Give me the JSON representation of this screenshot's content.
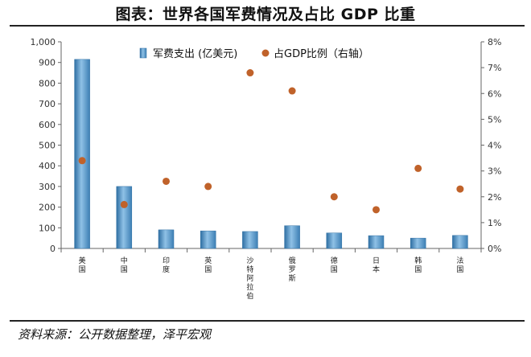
{
  "header": {
    "title": "图表：世界各国军费情况及占比 GDP 比重"
  },
  "footer": {
    "source": "资料来源：公开数据整理，泽平宏观"
  },
  "chart_data": {
    "type": "bar",
    "categories": [
      "美国",
      "中国",
      "印度",
      "英国",
      "沙特阿拉伯",
      "俄罗斯",
      "德国",
      "日本",
      "韩国",
      "法国"
    ],
    "series": [
      {
        "name": "军费支出 (亿美元)",
        "type": "bar",
        "axis": "left",
        "values": [
          915,
          300,
          90,
          85,
          82,
          110,
          75,
          62,
          50,
          63
        ],
        "color": "#4a90c4"
      },
      {
        "name": "占GDP比例（右轴）",
        "type": "scatter",
        "axis": "right",
        "values": [
          3.4,
          1.7,
          2.6,
          2.4,
          6.8,
          6.1,
          2.0,
          1.5,
          3.1,
          2.3
        ],
        "color": "#c0622a"
      }
    ],
    "y_left": {
      "ylim": [
        0,
        1000
      ],
      "ticks": [
        "0",
        "100",
        "200",
        "300",
        "400",
        "500",
        "600",
        "700",
        "800",
        "900",
        "1,000"
      ]
    },
    "y_right": {
      "ylim": [
        0,
        8
      ],
      "ticks": [
        "0%",
        "1%",
        "2%",
        "3%",
        "4%",
        "5%",
        "6%",
        "7%",
        "8%"
      ]
    },
    "legend_position": "top-center",
    "grid": false
  }
}
